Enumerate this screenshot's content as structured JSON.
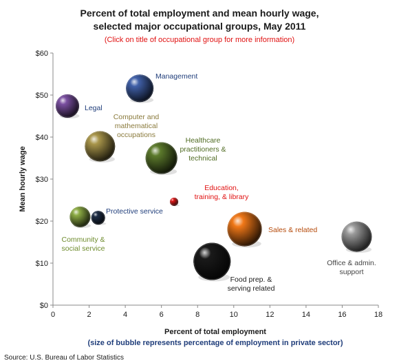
{
  "chart_data": {
    "type": "scatter",
    "title_lines": [
      "Percent of total employment and mean hourly wage,",
      "selected major occupational groups, May 2011"
    ],
    "subtitle": "(Click on title of occupational  group for more information)",
    "xlabel": "Percent of total employment",
    "xlabel_note": "(size of bubble represents percentage of employment in private sector)",
    "ylabel": "Mean hourly wage",
    "xlim": [
      0,
      18
    ],
    "ylim": [
      0,
      60
    ],
    "x_ticks": [
      0,
      2,
      4,
      6,
      8,
      10,
      12,
      14,
      16,
      18
    ],
    "y_ticks": [
      0,
      10,
      20,
      30,
      40,
      50,
      60
    ],
    "y_tick_labels": [
      "$0",
      "$10",
      "$20",
      "$30",
      "$40",
      "$50",
      "$60"
    ],
    "source": "Source: U.S. Bureau of Labor Statistics",
    "points": [
      {
        "name": "Management",
        "label_lines": [
          "Management"
        ],
        "x": 4.8,
        "y": 51.6,
        "size": 20,
        "color": "#4060a8",
        "label_color": "#1f3d7a"
      },
      {
        "name": "Legal",
        "label_lines": [
          "Legal"
        ],
        "x": 0.8,
        "y": 47.4,
        "size": 17,
        "color": "#7a4fa0",
        "label_color": "#1f3d7a"
      },
      {
        "name": "Computer and mathematical occupations",
        "label_lines": [
          "Computer and",
          "mathematical",
          "occupations"
        ],
        "x": 2.6,
        "y": 37.8,
        "size": 22,
        "color": "#a8954a",
        "label_color": "#8a7a3c"
      },
      {
        "name": "Healthcare practitioners & technical",
        "label_lines": [
          "Healthcare",
          "practitioners &",
          "technical"
        ],
        "x": 6.0,
        "y": 35.0,
        "size": 23,
        "color": "#5c7a2c",
        "label_color": "#4f6b22"
      },
      {
        "name": "Education, training, & library",
        "label_lines": [
          "Education,",
          "training, & library"
        ],
        "x": 6.7,
        "y": 24.6,
        "size": 6,
        "color": "#e01818",
        "label_color": "#e01010"
      },
      {
        "name": "Protective service",
        "label_lines": [
          "Protective service"
        ],
        "x": 2.5,
        "y": 20.8,
        "size": 10,
        "color": "#1d2c44",
        "label_color": "#1f3d7a"
      },
      {
        "name": "Community & social service",
        "label_lines": [
          "Community &",
          "social  service"
        ],
        "x": 1.5,
        "y": 21.0,
        "size": 15,
        "color": "#8cab44",
        "label_color": "#6f8c2e"
      },
      {
        "name": "Sales & related",
        "label_lines": [
          "Sales & related"
        ],
        "x": 10.6,
        "y": 18.1,
        "size": 25,
        "color": "#f07818",
        "label_color": "#b54a0a"
      },
      {
        "name": "Office & admin. support",
        "label_lines": [
          "Office & admin.",
          "support"
        ],
        "x": 16.8,
        "y": 16.3,
        "size": 22,
        "color": "#9a9a9a",
        "label_color": "#444444"
      },
      {
        "name": "Food prep. & serving related",
        "label_lines": [
          "Food prep.  &",
          "serving related"
        ],
        "x": 8.8,
        "y": 10.4,
        "size": 27,
        "color": "#1a1a1a",
        "label_color": "#1a1a1a"
      }
    ]
  }
}
